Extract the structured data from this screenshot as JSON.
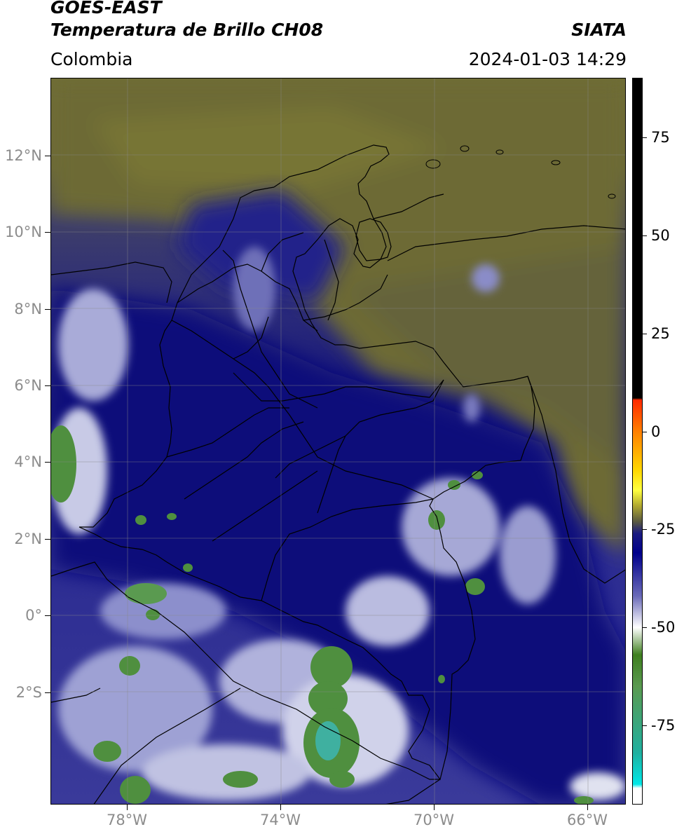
{
  "header": {
    "satellite": "GOES-EAST",
    "product": "Temperatura de Brillo CH08",
    "source": "SIATA",
    "region": "Colombia",
    "datetime": "2024-01-03 14:29"
  },
  "map": {
    "lat_labels": [
      "12°N",
      "10°N",
      "8°N",
      "6°N",
      "4°N",
      "2°N",
      "0°",
      "2°S"
    ],
    "lon_labels": [
      "78°W",
      "74°W",
      "70°W",
      "66°W"
    ],
    "lat_values": [
      12,
      10,
      8,
      6,
      4,
      2,
      0,
      -2
    ],
    "lon_values": [
      -78,
      -74,
      -70,
      -66
    ],
    "extent": {
      "lon_min": -80,
      "lon_max": -65,
      "lat_min": -5,
      "lat_max": 14
    },
    "gridlines": true,
    "colors": {
      "warm_olive": "#6f6d35",
      "dark_olive": "#5c5a38",
      "deep_blue": "#1a1a8a",
      "navy": "#0d0d6e",
      "light_blue": "#7d80c4",
      "white_cloud": "#e8e8f2",
      "green_cold": "#4f8f3f",
      "teal_cold": "#3fb0a0",
      "border": "#000000"
    }
  },
  "colorbar": {
    "ticks": [
      "75",
      "50",
      "25",
      "0",
      "-25",
      "-50",
      "-75"
    ],
    "tick_values": [
      75,
      50,
      25,
      0,
      -25,
      -50,
      -75
    ],
    "range": [
      -95,
      90
    ],
    "stops": [
      {
        "v": 90,
        "c": "#000000"
      },
      {
        "v": 8.5,
        "c": "#000000"
      },
      {
        "v": 8,
        "c": "#ff2a00"
      },
      {
        "v": 0,
        "c": "#ff7f00"
      },
      {
        "v": -10,
        "c": "#ffd800"
      },
      {
        "v": -15,
        "c": "#ffff40"
      },
      {
        "v": -19,
        "c": "#b0a830"
      },
      {
        "v": -23,
        "c": "#5a5a40"
      },
      {
        "v": -26,
        "c": "#1a1a80"
      },
      {
        "v": -31,
        "c": "#00008b"
      },
      {
        "v": -42,
        "c": "#6a6ab8"
      },
      {
        "v": -50,
        "c": "#ffffff"
      },
      {
        "v": -57,
        "c": "#3f7f1f"
      },
      {
        "v": -65,
        "c": "#5a9a50"
      },
      {
        "v": -82,
        "c": "#20b0a0"
      },
      {
        "v": -90,
        "c": "#00e8e8"
      },
      {
        "v": -91,
        "c": "#ffffff"
      },
      {
        "v": -95,
        "c": "#ffffff"
      }
    ]
  }
}
